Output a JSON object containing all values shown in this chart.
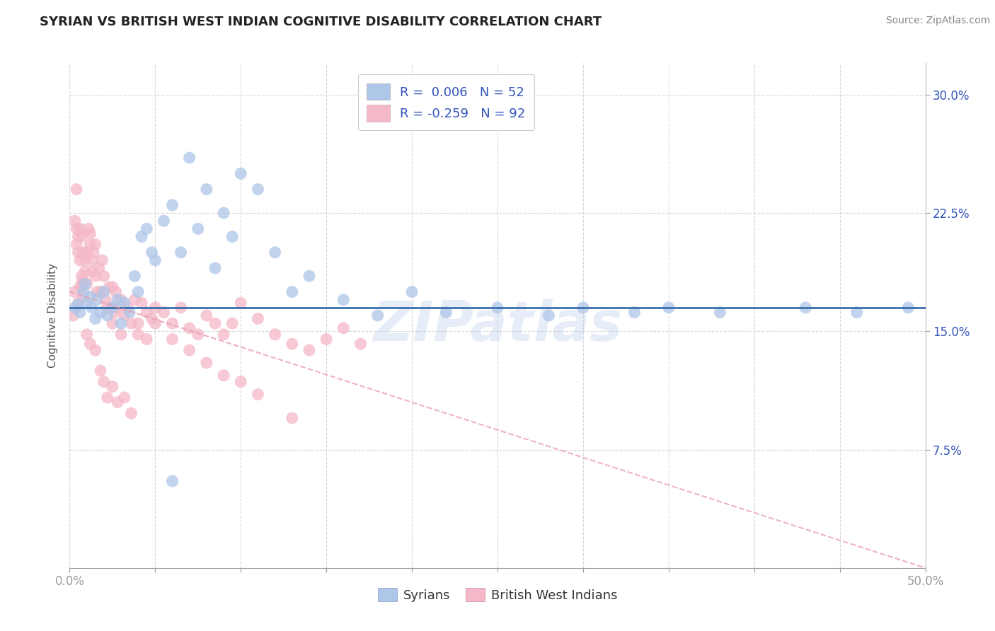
{
  "title": "SYRIAN VS BRITISH WEST INDIAN COGNITIVE DISABILITY CORRELATION CHART",
  "source": "Source: ZipAtlas.com",
  "ylabel": "Cognitive Disability",
  "x_min": 0.0,
  "x_max": 0.5,
  "y_min": 0.0,
  "y_max": 0.32,
  "x_ticks": [
    0.0,
    0.05,
    0.1,
    0.15,
    0.2,
    0.25,
    0.3,
    0.35,
    0.4,
    0.45,
    0.5
  ],
  "x_tick_labels_show": {
    "0.0": "0.0%",
    "0.5": "50.0%"
  },
  "y_ticks": [
    0.075,
    0.15,
    0.225,
    0.3
  ],
  "y_tick_labels": [
    "7.5%",
    "15.0%",
    "22.5%",
    "30.0%"
  ],
  "legend_entries": [
    {
      "label_r": "R =",
      "label_val": " 0.006",
      "label_n": "  N =",
      "label_nval": " 52",
      "color": "#aec6e8"
    },
    {
      "label_r": "R =",
      "label_val": "-0.259",
      "label_n": "  N =",
      "label_nval": " 92",
      "color": "#f4b8c8"
    }
  ],
  "legend_bottom": [
    "Syrians",
    "British West Indians"
  ],
  "syrian_color": "#aec6e8",
  "bwi_color": "#f4b8c8",
  "syrian_line_color": "#3a6fad",
  "bwi_line_color": "#e8a0b0",
  "watermark": "ZIPatlas",
  "title_color": "#222222",
  "title_fontsize": 13,
  "axis_label_color": "#555555",
  "tick_color": "#3355bb",
  "grid_color": "#cccccc",
  "background_color": "#ffffff",
  "syrian_line_y_intercept": 0.165,
  "syrian_line_slope": 0.0,
  "bwi_line_x_start": 0.0,
  "bwi_line_x_end": 0.5,
  "bwi_line_y_start": 0.175,
  "bwi_line_y_end": 0.0,
  "syrian_x": [
    0.003,
    0.005,
    0.006,
    0.008,
    0.009,
    0.01,
    0.012,
    0.013,
    0.015,
    0.016,
    0.018,
    0.02,
    0.022,
    0.025,
    0.028,
    0.03,
    0.032,
    0.035,
    0.038,
    0.04,
    0.042,
    0.045,
    0.048,
    0.05,
    0.055,
    0.06,
    0.065,
    0.07,
    0.075,
    0.08,
    0.085,
    0.09,
    0.095,
    0.1,
    0.11,
    0.12,
    0.13,
    0.14,
    0.16,
    0.18,
    0.2,
    0.22,
    0.25,
    0.28,
    0.3,
    0.33,
    0.38,
    0.43,
    0.46,
    0.49,
    0.35,
    0.06
  ],
  "syrian_y": [
    0.165,
    0.167,
    0.162,
    0.175,
    0.18,
    0.168,
    0.172,
    0.165,
    0.158,
    0.17,
    0.162,
    0.175,
    0.16,
    0.165,
    0.17,
    0.155,
    0.168,
    0.162,
    0.185,
    0.175,
    0.21,
    0.215,
    0.2,
    0.195,
    0.22,
    0.23,
    0.2,
    0.26,
    0.215,
    0.24,
    0.19,
    0.225,
    0.21,
    0.25,
    0.24,
    0.2,
    0.175,
    0.185,
    0.17,
    0.16,
    0.175,
    0.162,
    0.165,
    0.16,
    0.165,
    0.162,
    0.162,
    0.165,
    0.162,
    0.165,
    0.165,
    0.055
  ],
  "bwi_x": [
    0.002,
    0.003,
    0.004,
    0.004,
    0.005,
    0.005,
    0.006,
    0.006,
    0.007,
    0.007,
    0.008,
    0.008,
    0.009,
    0.009,
    0.01,
    0.01,
    0.011,
    0.012,
    0.012,
    0.013,
    0.013,
    0.014,
    0.015,
    0.015,
    0.016,
    0.017,
    0.018,
    0.019,
    0.02,
    0.021,
    0.022,
    0.023,
    0.024,
    0.025,
    0.026,
    0.027,
    0.028,
    0.03,
    0.032,
    0.034,
    0.036,
    0.038,
    0.04,
    0.042,
    0.045,
    0.048,
    0.05,
    0.055,
    0.06,
    0.065,
    0.07,
    0.075,
    0.08,
    0.085,
    0.09,
    0.095,
    0.1,
    0.11,
    0.12,
    0.13,
    0.14,
    0.15,
    0.16,
    0.17,
    0.003,
    0.004,
    0.005,
    0.006,
    0.007,
    0.008,
    0.01,
    0.012,
    0.015,
    0.018,
    0.02,
    0.022,
    0.025,
    0.028,
    0.032,
    0.036,
    0.04,
    0.045,
    0.05,
    0.06,
    0.07,
    0.08,
    0.09,
    0.1,
    0.11,
    0.13,
    0.025,
    0.03
  ],
  "bwi_y": [
    0.16,
    0.22,
    0.215,
    0.24,
    0.2,
    0.21,
    0.215,
    0.195,
    0.21,
    0.185,
    0.2,
    0.182,
    0.188,
    0.195,
    0.18,
    0.2,
    0.215,
    0.205,
    0.212,
    0.195,
    0.188,
    0.2,
    0.205,
    0.185,
    0.175,
    0.19,
    0.175,
    0.195,
    0.185,
    0.17,
    0.165,
    0.178,
    0.165,
    0.178,
    0.162,
    0.175,
    0.165,
    0.17,
    0.16,
    0.165,
    0.155,
    0.17,
    0.155,
    0.168,
    0.162,
    0.158,
    0.165,
    0.162,
    0.155,
    0.165,
    0.152,
    0.148,
    0.16,
    0.155,
    0.148,
    0.155,
    0.168,
    0.158,
    0.148,
    0.142,
    0.138,
    0.145,
    0.152,
    0.142,
    0.175,
    0.205,
    0.168,
    0.178,
    0.18,
    0.172,
    0.148,
    0.142,
    0.138,
    0.125,
    0.118,
    0.108,
    0.115,
    0.105,
    0.108,
    0.098,
    0.148,
    0.145,
    0.155,
    0.145,
    0.138,
    0.13,
    0.122,
    0.118,
    0.11,
    0.095,
    0.155,
    0.148
  ]
}
